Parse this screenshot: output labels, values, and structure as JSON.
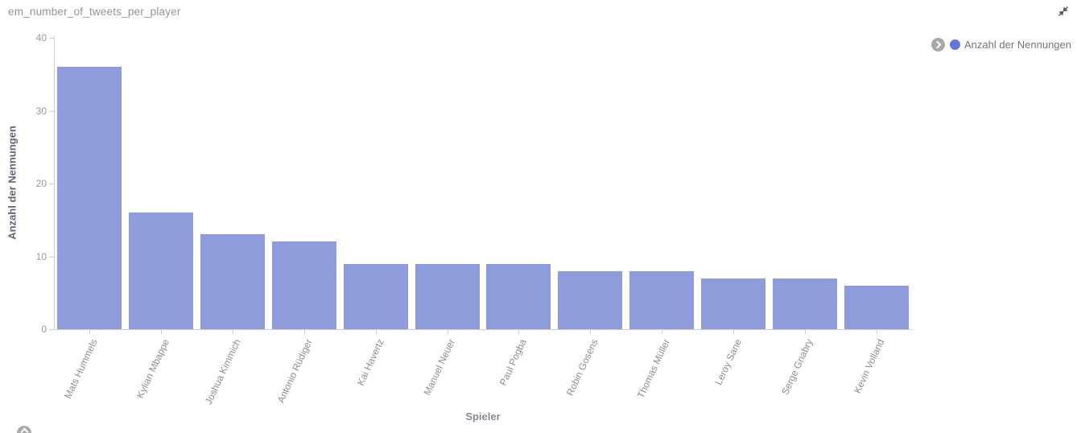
{
  "header": {
    "title": "em_number_of_tweets_per_player"
  },
  "legend": {
    "items": [
      {
        "label": "Anzahl der Nennungen",
        "color": "#6577d2"
      }
    ]
  },
  "chart_data": {
    "type": "bar",
    "title": "em_number_of_tweets_per_player",
    "categories": [
      "Mats Hummels",
      "Kylian Mbappe",
      "Joshua Kimmich",
      "Antonio Rüdiger",
      "Kai Havertz",
      "Manuel Neuer",
      "Paul Pogba",
      "Robin Gosens",
      "Thomas Müller",
      "Leroy Sane",
      "Serge Gnabry",
      "Kevin Volland"
    ],
    "series": [
      {
        "name": "Anzahl der Nennungen",
        "values": [
          36,
          16,
          13,
          12,
          9,
          9,
          9,
          8,
          8,
          7,
          7,
          6
        ],
        "color": "#8f9cdb"
      }
    ],
    "xlabel": "Spieler",
    "ylabel": "Anzahl der Nennungen",
    "ylim": [
      0,
      40
    ],
    "yticks": [
      0,
      10,
      20,
      30,
      40
    ],
    "grid": false,
    "legend_position": "top-right"
  },
  "colors": {
    "bar_fill": "#8f9cdb",
    "legend_dot": "#6577d2",
    "axis_line": "#cccccc",
    "tick_text": "#999999",
    "category_text": "#8e8e8e",
    "title_text": "#949494",
    "legend_text": "#757575",
    "pager_background": "#a8a8a8",
    "collapse_icon": "#4d5a66"
  }
}
